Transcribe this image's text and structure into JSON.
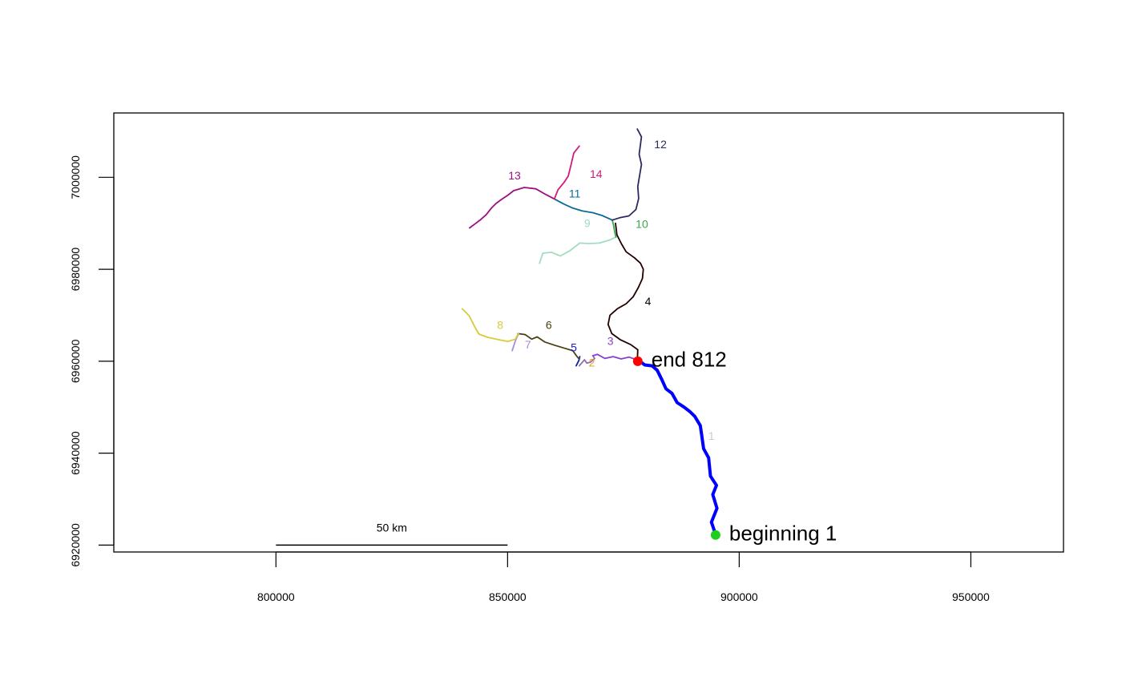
{
  "chart_data": {
    "type": "line",
    "title": "",
    "xlabel": "",
    "ylabel": "",
    "xlim": [
      765000,
      970000
    ],
    "ylim": [
      6918500,
      7014000
    ],
    "x_ticks": [
      {
        "value": 800000,
        "label": "800000"
      },
      {
        "value": 850000,
        "label": "850000"
      },
      {
        "value": 900000,
        "label": "900000"
      },
      {
        "value": 950000,
        "label": "950000"
      }
    ],
    "y_ticks": [
      {
        "value": 6920000,
        "label": "6920000"
      },
      {
        "value": 6940000,
        "label": "6940000"
      },
      {
        "value": 6960000,
        "label": "6960000"
      },
      {
        "value": 6980000,
        "label": "6980000"
      },
      {
        "value": 7000000,
        "label": "7000000"
      }
    ],
    "series": [
      {
        "name": "1",
        "color": "#0000ff",
        "label_at": [
          894000,
          6943500
        ],
        "label_color": "#c8c8dc",
        "x": [
          895000,
          894000,
          895200,
          894300,
          895100,
          893800,
          893400,
          892300,
          891900,
          891600,
          890400,
          889400,
          888100,
          886600,
          885500,
          884200,
          883300,
          882300,
          881200,
          879600,
          878600
        ],
        "y": [
          6922000,
          6925000,
          6928000,
          6931000,
          6933000,
          6935000,
          6939000,
          6941000,
          6944000,
          6946000,
          6948000,
          6949000,
          6950000,
          6951000,
          6953000,
          6954000,
          6956000,
          6958000,
          6959000,
          6959200,
          6960000
        ]
      },
      {
        "name": "2",
        "color": "#8e6bb0",
        "label_at": [
          868200,
          6959500
        ],
        "label_color": "#e0a020",
        "x": [
          865500,
          866600,
          867100,
          867900,
          868800,
          868400
        ],
        "y": [
          6959000,
          6960300,
          6959600,
          6959800,
          6960600,
          6961200
        ]
      },
      {
        "name": "3",
        "color": "#8a3fd0",
        "label_at": [
          872200,
          6964200
        ],
        "label_color": "#8a3fd0",
        "x": [
          868400,
          869400,
          871000,
          872800,
          874500,
          876200,
          877900
        ],
        "y": [
          6961200,
          6961500,
          6960600,
          6961000,
          6960500,
          6960900,
          6960300
        ]
      },
      {
        "name": "4",
        "color": "#220000",
        "label_at": [
          880300,
          6972800
        ],
        "label_color": "#000000",
        "x": [
          878000,
          878100,
          876600,
          874300,
          872500,
          871700,
          872100,
          873700,
          875600,
          877100,
          878200,
          879100,
          879300,
          878700,
          877400,
          875600,
          874600,
          873600,
          873300
        ],
        "y": [
          6960000,
          6962500,
          6963600,
          6964700,
          6966000,
          6968000,
          6970000,
          6971400,
          6972500,
          6974000,
          6976000,
          6978000,
          6980000,
          6981300,
          6982500,
          6983800,
          6985500,
          6987500,
          6990000
        ]
      },
      {
        "name": "5",
        "color": "#0a22a0",
        "label_at": [
          864300,
          6962800
        ],
        "label_color": "#1b1bc8",
        "x": [
          864800,
          865400,
          865600
        ],
        "y": [
          6959000,
          6960200,
          6961000
        ]
      },
      {
        "name": "6",
        "color": "#4a4010",
        "label_at": [
          858900,
          6967700
        ],
        "label_color": "#4a4010",
        "x": [
          852200,
          853800,
          855200,
          856400,
          858000,
          860100,
          862400,
          864100,
          864700,
          865400
        ],
        "y": [
          6966000,
          6965800,
          6964800,
          6965300,
          6964200,
          6963500,
          6962800,
          6962300,
          6961400,
          6960500
        ]
      },
      {
        "name": "7",
        "color": "#a98ad8",
        "label_at": [
          854400,
          6963400
        ],
        "label_color": "#a98ad8",
        "x": [
          851000,
          851700,
          852400
        ],
        "y": [
          6962300,
          6964500,
          6966000
        ]
      },
      {
        "name": "8",
        "color": "#d6cc38",
        "label_at": [
          848400,
          6967700
        ],
        "label_color": "#d6cc38",
        "x": [
          840200,
          841700,
          842800,
          843800,
          845700,
          848000,
          850100,
          851700,
          852300
        ],
        "y": [
          6971400,
          6969900,
          6967700,
          6965900,
          6965200,
          6964700,
          6964300,
          6964800,
          6966000
        ]
      },
      {
        "name": "9",
        "color": "#a3dcc0",
        "label_at": [
          867200,
          6989800
        ],
        "label_color": "#a3dcc0",
        "x": [
          856900,
          857600,
          859500,
          861400,
          863400,
          865600,
          867600,
          869800,
          871900,
          873400
        ],
        "y": [
          6981300,
          6983500,
          6983700,
          6982900,
          6984000,
          6985700,
          6985600,
          6985700,
          6986300,
          6987000
        ]
      },
      {
        "name": "10",
        "color": "#37a84a",
        "label_at": [
          879000,
          6989600
        ],
        "label_color": "#37a84a",
        "x": [
          873400,
          873100,
          872900,
          872600
        ],
        "y": [
          6987000,
          6988200,
          6989500,
          6990700
        ]
      },
      {
        "name": "11",
        "color": "#0c6b96",
        "label_at": [
          864500,
          6996300
        ],
        "label_color": "#0c6b96",
        "x": [
          860100,
          862100,
          864100,
          866100,
          868400,
          870400,
          872600
        ],
        "y": [
          6995300,
          6994200,
          6993300,
          6992700,
          6992300,
          6991700,
          6990700
        ]
      },
      {
        "name": "12",
        "color": "#2a2a60",
        "label_at": [
          883000,
          7007000
        ],
        "label_color": "#2a2a60",
        "x": [
          872600,
          874200,
          876200,
          877700,
          878300,
          878100,
          878500,
          878900,
          878400,
          878700,
          878900,
          878000
        ],
        "y": [
          6990700,
          6991200,
          6991600,
          6993000,
          6995400,
          6998000,
          7000400,
          7002800,
          7005000,
          7007200,
          7008800,
          7010500
        ]
      },
      {
        "name": "13",
        "color": "#9c1080",
        "label_at": [
          851500,
          7000200
        ],
        "label_color": "#9c1080",
        "x": [
          860100,
          858200,
          856100,
          853600,
          851300,
          849900,
          848700,
          847500,
          846500,
          845400,
          844200,
          843000,
          841800
        ],
        "y": [
          6995300,
          6996300,
          6997500,
          6997800,
          6997100,
          6996000,
          6995200,
          6994300,
          6993300,
          6991900,
          6990800,
          6989900,
          6989000
        ]
      },
      {
        "name": "14",
        "color": "#d21a78",
        "label_at": [
          869100,
          7000500
        ],
        "label_color": "#d21a78",
        "x": [
          860100,
          860900,
          862200,
          863100,
          863700,
          864300,
          865500
        ],
        "y": [
          6995300,
          6997300,
          6998900,
          7000300,
          7002700,
          7005300,
          7006800
        ]
      }
    ],
    "points": [
      {
        "name": "end-point",
        "label": "end 812",
        "x": 878100,
        "y": 6960000,
        "color": "#ff0000"
      },
      {
        "name": "beginning-point",
        "label": "beginning 1",
        "x": 894900,
        "y": 6922200,
        "color": "#1fcd1f"
      }
    ],
    "scale_bar": {
      "label": "50 km",
      "x_start": 800000,
      "x_end": 850000,
      "y": 6920000
    },
    "grid": false,
    "legend": "none"
  }
}
